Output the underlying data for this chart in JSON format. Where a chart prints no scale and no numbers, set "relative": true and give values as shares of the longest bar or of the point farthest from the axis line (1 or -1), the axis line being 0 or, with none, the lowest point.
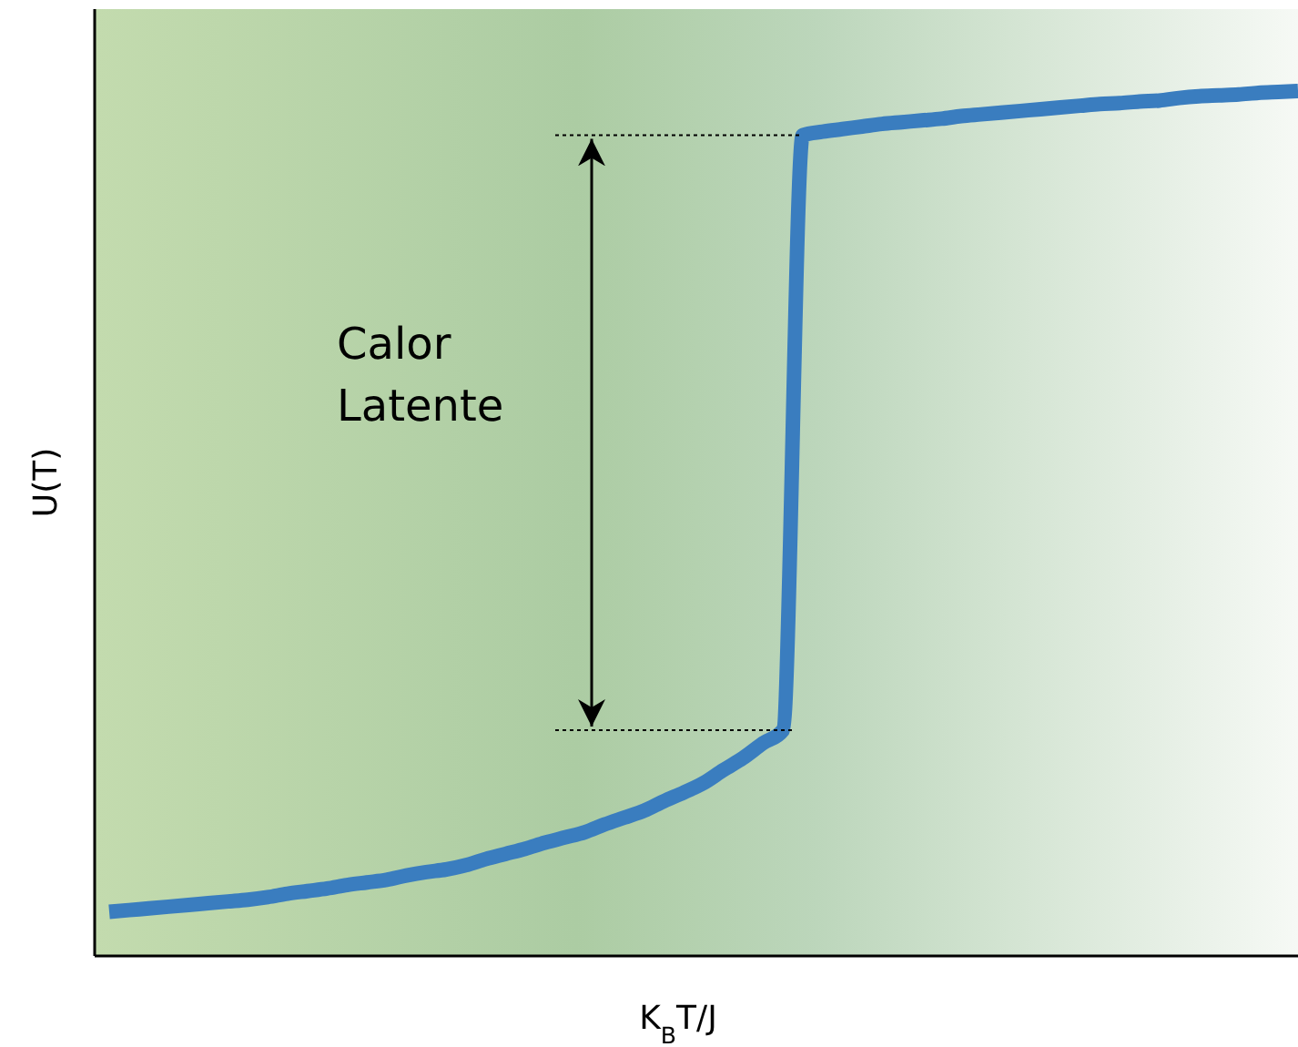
{
  "chart_data": {
    "type": "line",
    "relative": true,
    "xlabel": "K$_{B}$T/J",
    "ylabel": "U(T)",
    "annotations": [
      "Calor Latente"
    ],
    "categories": [
      null,
      null,
      null,
      null,
      null,
      null,
      null,
      null,
      null,
      null,
      null,
      null,
      null,
      null,
      null,
      null,
      null,
      null,
      null,
      null,
      null,
      null,
      null,
      null,
      null,
      null,
      null,
      null,
      null,
      null,
      null,
      null,
      null,
      null,
      null,
      null,
      null,
      null,
      null,
      null,
      null,
      null,
      null,
      null,
      null,
      null,
      null,
      null,
      null,
      null,
      null,
      null,
      null,
      null,
      null,
      null,
      null,
      null,
      null,
      null,
      null
    ],
    "series": [
      {
        "color": "#3a7dbf",
        "values": [
          0.051,
          0.053,
          0.055,
          0.057,
          0.059,
          0.061,
          0.063,
          0.065,
          0.068,
          0.072,
          0.075,
          0.078,
          0.082,
          0.085,
          0.088,
          0.093,
          0.097,
          0.1,
          0.105,
          0.112,
          0.118,
          0.124,
          0.131,
          0.137,
          0.143,
          0.152,
          0.16,
          0.168,
          0.179,
          0.189,
          0.2,
          0.215,
          0.229,
          0.246,
          0.261,
          0.949,
          0.953,
          0.956,
          0.959,
          0.962,
          0.964,
          0.966,
          0.968,
          0.971,
          0.973,
          0.975,
          0.977,
          0.979,
          0.981,
          0.983,
          0.985,
          0.986,
          0.988,
          0.989,
          0.992,
          0.994,
          0.995,
          0.996,
          0.998,
          0.999,
          1
        ]
      }
    ],
    "line_style": "solid"
  }
}
